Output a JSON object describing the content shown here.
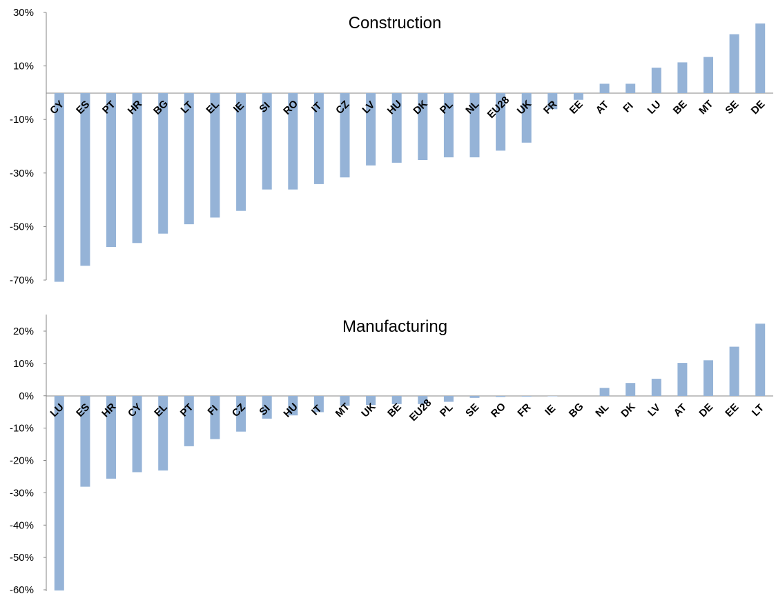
{
  "chart_data": [
    {
      "type": "bar",
      "title": "Construction",
      "xlabel": "",
      "ylabel": "",
      "yticks": [
        "30%",
        "10%",
        "-10%",
        "-30%",
        "-50%",
        "-70%"
      ],
      "ylim": [
        -70,
        30
      ],
      "grid": false,
      "categories": [
        "CY",
        "ES",
        "PT",
        "HR",
        "BG",
        "LT",
        "EL",
        "IE",
        "SI",
        "RO",
        "IT",
        "CZ",
        "LV",
        "HU",
        "DK",
        "PL",
        "NL",
        "EU28",
        "UK",
        "FR",
        "EE",
        "AT",
        "FI",
        "LU",
        "BE",
        "MT",
        "SE",
        "DE"
      ],
      "values": [
        -70.5,
        -64.5,
        -57.5,
        -56,
        -52.5,
        -49,
        -46.5,
        -44,
        -36,
        -36,
        -34,
        -31.5,
        -27,
        -26,
        -25,
        -24,
        -24,
        -21.5,
        -18.5,
        -6,
        -2.5,
        3.5,
        3.5,
        9.5,
        11.5,
        13.5,
        22,
        26
      ],
      "color": "#95b3d7"
    },
    {
      "type": "bar",
      "title": "Manufacturing",
      "xlabel": "",
      "ylabel": "",
      "yticks": [
        "20%",
        "10%",
        "0%",
        "-10%",
        "-20%",
        "-30%",
        "-40%",
        "-50%",
        "-60%"
      ],
      "ylim": [
        -60,
        25
      ],
      "grid": false,
      "categories": [
        "LU",
        "ES",
        "HR",
        "CY",
        "EL",
        "PT",
        "FI",
        "CZ",
        "SI",
        "HU",
        "IT",
        "MT",
        "UK",
        "BE",
        "EU28",
        "PL",
        "SE",
        "RO",
        "FR",
        "IE",
        "BG",
        "NL",
        "DK",
        "LV",
        "AT",
        "DE",
        "EE",
        "LT"
      ],
      "values": [
        -60,
        -28,
        -25.5,
        -23.5,
        -23,
        -15.5,
        -13.3,
        -11,
        -7,
        -6,
        -5,
        -3,
        -2.8,
        -2.5,
        -2.5,
        -1.8,
        -0.6,
        -0.3,
        -0.2,
        -0.1,
        0,
        2.5,
        4,
        5.3,
        10.2,
        11,
        15.2,
        22.3
      ],
      "color": "#95b3d7"
    }
  ]
}
